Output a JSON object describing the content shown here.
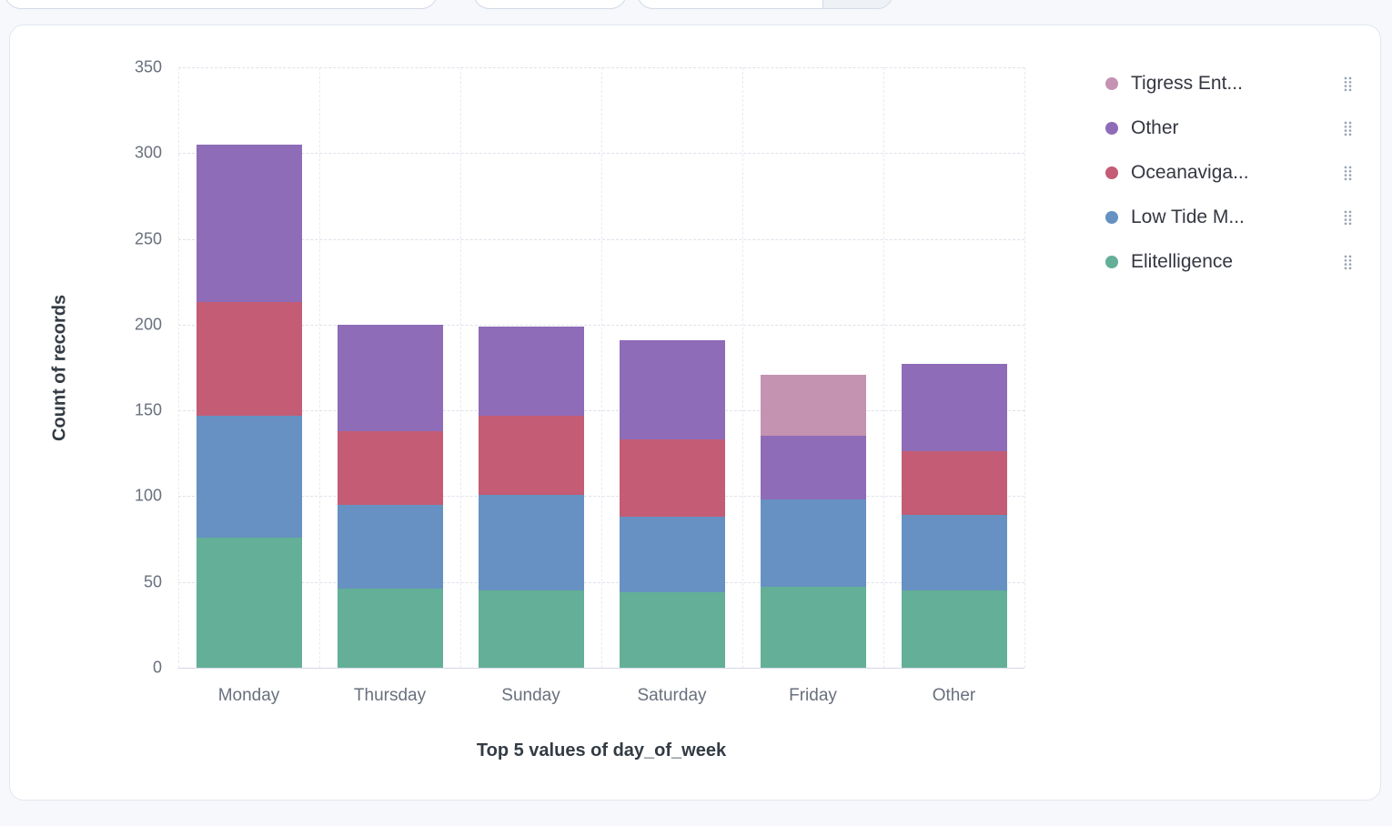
{
  "chart_data": {
    "type": "bar",
    "stacked": true,
    "title": "",
    "xlabel": "Top 5 values of day_of_week",
    "ylabel": "Count of records",
    "categories": [
      "Monday",
      "Thursday",
      "Sunday",
      "Saturday",
      "Friday",
      "Other"
    ],
    "series": [
      {
        "name": "Elitelligence",
        "color": "#63af97",
        "values": [
          76,
          46,
          45,
          44,
          47,
          45
        ]
      },
      {
        "name": "Low Tide M...",
        "color": "#6691c2",
        "values": [
          71,
          49,
          56,
          44,
          51,
          44
        ]
      },
      {
        "name": "Oceanaviga...",
        "color": "#c35c74",
        "values": [
          66,
          43,
          46,
          45,
          0,
          37
        ]
      },
      {
        "name": "Other",
        "color": "#8e6cb8",
        "values": [
          92,
          62,
          52,
          58,
          37,
          51
        ]
      },
      {
        "name": "Tigress Ent...",
        "color": "#c493b1",
        "values": [
          0,
          0,
          0,
          0,
          36,
          0
        ]
      }
    ],
    "ylim": [
      0,
      350
    ],
    "yticks": [
      0,
      50,
      100,
      150,
      200,
      250,
      300,
      350
    ],
    "grid": true,
    "legend_position": "right"
  },
  "legend": {
    "items": [
      {
        "label": "Tigress Ent...",
        "color": "#c493b1"
      },
      {
        "label": "Other",
        "color": "#8e6cb8"
      },
      {
        "label": "Oceanaviga...",
        "color": "#c35c74"
      },
      {
        "label": "Low Tide M...",
        "color": "#6691c2"
      },
      {
        "label": "Elitelligence",
        "color": "#63af97"
      }
    ]
  }
}
